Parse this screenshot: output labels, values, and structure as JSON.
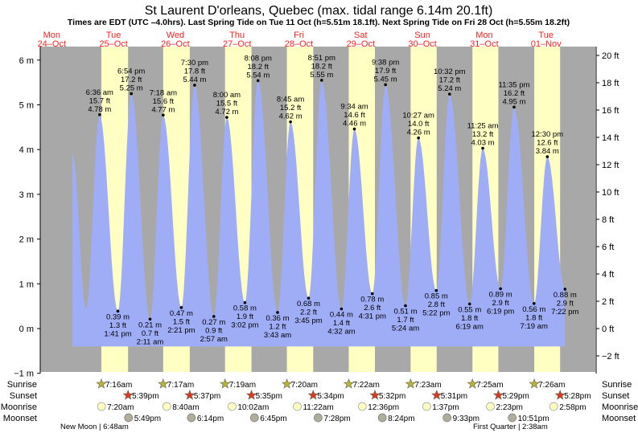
{
  "chart_data": {
    "type": "area",
    "title": "St Laurent D'orleans, Quebec (max. tidal range 6.14m 20.1ft)",
    "subtitle": "Times are EDT (UTC –4.0hrs). Last Spring Tide on Tue 11 Oct (h=5.51m 18.1ft). Next Spring Tide on Fri 28 Oct (h=5.55m 18.2ft)",
    "days": [
      {
        "dow": "Mon",
        "date": "24–Oct"
      },
      {
        "dow": "Tue",
        "date": "25–Oct"
      },
      {
        "dow": "Wed",
        "date": "26–Oct"
      },
      {
        "dow": "Thu",
        "date": "27–Oct"
      },
      {
        "dow": "Fri",
        "date": "28–Oct"
      },
      {
        "dow": "Sat",
        "date": "29–Oct"
      },
      {
        "dow": "Sun",
        "date": "30–Oct"
      },
      {
        "dow": "Mon",
        "date": "31–Oct"
      },
      {
        "dow": "Tue",
        "date": "01–Nov"
      }
    ],
    "y_left": {
      "ticks": [
        6,
        5,
        4,
        3,
        2,
        1,
        0,
        -1
      ],
      "unit": "m",
      "ylim": [
        -1,
        6.3
      ]
    },
    "y_right": {
      "ticks": [
        20,
        18,
        16,
        14,
        12,
        10,
        8,
        6,
        4,
        2,
        0,
        -2
      ],
      "unit": "ft"
    },
    "tides": [
      {
        "day": 1,
        "time": "6:36 am",
        "h": 4.78,
        "ft": "15.7 ft",
        "hi": true
      },
      {
        "day": 1,
        "time": "1:41 pm",
        "h": 0.39,
        "ft": "1.3 ft",
        "hi": false
      },
      {
        "day": 1,
        "time": "6:54 pm",
        "h": 5.25,
        "ft": "17.2 ft",
        "hi": true
      },
      {
        "day": 2,
        "time": "2:11 am",
        "h": 0.21,
        "ft": "0.7 ft",
        "hi": false
      },
      {
        "day": 2,
        "time": "7:18 am",
        "h": 4.77,
        "ft": "15.6 ft",
        "hi": true
      },
      {
        "day": 2,
        "time": "2:21 pm",
        "h": 0.47,
        "ft": "1.5 ft",
        "hi": false
      },
      {
        "day": 2,
        "time": "7:30 pm",
        "h": 5.44,
        "ft": "17.8 ft",
        "hi": true
      },
      {
        "day": 3,
        "time": "2:57 am",
        "h": 0.27,
        "ft": "0.9 ft",
        "hi": false
      },
      {
        "day": 3,
        "time": "8:00 am",
        "h": 4.72,
        "ft": "15.5 ft",
        "hi": true
      },
      {
        "day": 3,
        "time": "3:02 pm",
        "h": 0.58,
        "ft": "1.9 ft",
        "hi": false
      },
      {
        "day": 3,
        "time": "8:08 pm",
        "h": 5.54,
        "ft": "18.2 ft",
        "hi": true
      },
      {
        "day": 4,
        "time": "3:43 am",
        "h": 0.36,
        "ft": "1.2 ft",
        "hi": false
      },
      {
        "day": 4,
        "time": "8:45 am",
        "h": 4.62,
        "ft": "15.2 ft",
        "hi": true
      },
      {
        "day": 4,
        "time": "3:45 pm",
        "h": 0.68,
        "ft": "2.2 ft",
        "hi": false
      },
      {
        "day": 4,
        "time": "8:51 pm",
        "h": 5.55,
        "ft": "18.2 ft",
        "hi": true
      },
      {
        "day": 5,
        "time": "4:32 am",
        "h": 0.44,
        "ft": "1.4 ft",
        "hi": false
      },
      {
        "day": 5,
        "time": "9:34 am",
        "h": 4.46,
        "ft": "14.6 ft",
        "hi": true
      },
      {
        "day": 5,
        "time": "4:31 pm",
        "h": 0.78,
        "ft": "2.6 ft",
        "hi": false
      },
      {
        "day": 5,
        "time": "9:38 pm",
        "h": 5.45,
        "ft": "17.9 ft",
        "hi": true
      },
      {
        "day": 6,
        "time": "5:24 am",
        "h": 0.51,
        "ft": "1.7 ft",
        "hi": false
      },
      {
        "day": 6,
        "time": "10:27 am",
        "h": 4.26,
        "ft": "14.0 ft",
        "hi": true
      },
      {
        "day": 6,
        "time": "5:22 pm",
        "h": 0.85,
        "ft": "2.8 ft",
        "hi": false
      },
      {
        "day": 6,
        "time": "10:32 pm",
        "h": 5.24,
        "ft": "17.2 ft",
        "hi": true
      },
      {
        "day": 7,
        "time": "6:19 am",
        "h": 0.55,
        "ft": "1.8 ft",
        "hi": false
      },
      {
        "day": 7,
        "time": "11:25 am",
        "h": 4.03,
        "ft": "13.2 ft",
        "hi": true
      },
      {
        "day": 7,
        "time": "6:19 pm",
        "h": 0.89,
        "ft": "2.9 ft",
        "hi": false
      },
      {
        "day": 7,
        "time": "11:35 pm",
        "h": 4.95,
        "ft": "16.2 ft",
        "hi": true
      },
      {
        "day": 8,
        "time": "7:19 am",
        "h": 0.56,
        "ft": "1.8 ft",
        "hi": false
      },
      {
        "day": 8,
        "time": "12:30 pm",
        "h": 3.84,
        "ft": "12.6 ft",
        "hi": true
      },
      {
        "day": 8,
        "time": "7:22 pm",
        "h": 0.88,
        "ft": "2.9 ft",
        "hi": false
      }
    ],
    "sun": [
      {
        "day": 1,
        "rise": "7:16am",
        "set": "5:39pm"
      },
      {
        "day": 2,
        "rise": "7:17am",
        "set": "5:37pm"
      },
      {
        "day": 3,
        "rise": "7:19am",
        "set": "5:35pm"
      },
      {
        "day": 4,
        "rise": "7:20am",
        "set": "5:34pm"
      },
      {
        "day": 5,
        "rise": "7:22am",
        "set": "5:32pm"
      },
      {
        "day": 6,
        "rise": "7:23am",
        "set": "5:31pm"
      },
      {
        "day": 7,
        "rise": "7:25am",
        "set": "5:29pm"
      },
      {
        "day": 8,
        "rise": "7:26am",
        "set": "5:28pm"
      }
    ],
    "moonrise": [
      {
        "day": 1,
        "t": "7:20am"
      },
      {
        "day": 2,
        "t": "8:40am"
      },
      {
        "day": 3,
        "t": "10:02am"
      },
      {
        "day": 4,
        "t": "11:22am"
      },
      {
        "day": 5,
        "t": "12:36pm"
      },
      {
        "day": 6,
        "t": "1:37pm"
      },
      {
        "day": 7,
        "t": "2:23pm"
      },
      {
        "day": 8,
        "t": "2:58pm"
      }
    ],
    "moonset": [
      {
        "day": 1,
        "t": "5:49pm"
      },
      {
        "day": 2,
        "t": "6:14pm"
      },
      {
        "day": 3,
        "t": "6:45pm"
      },
      {
        "day": 4,
        "t": "7:28pm"
      },
      {
        "day": 5,
        "t": "8:24pm"
      },
      {
        "day": 6,
        "t": "9:33pm"
      },
      {
        "day": 7,
        "t": "10:51pm"
      }
    ],
    "row_labels": {
      "sunrise": "Sunrise",
      "sunset": "Sunset",
      "moonrise": "Moonrise",
      "moonset": "Moonset"
    },
    "phases": [
      {
        "text": "New Moon | 6:48am"
      },
      {
        "text": "First Quarter | 2:38am"
      }
    ],
    "colors": {
      "day": "#ffffc4",
      "night": "#a8a8a8",
      "tide": "#9fadf7",
      "label": "#ff2222"
    }
  }
}
